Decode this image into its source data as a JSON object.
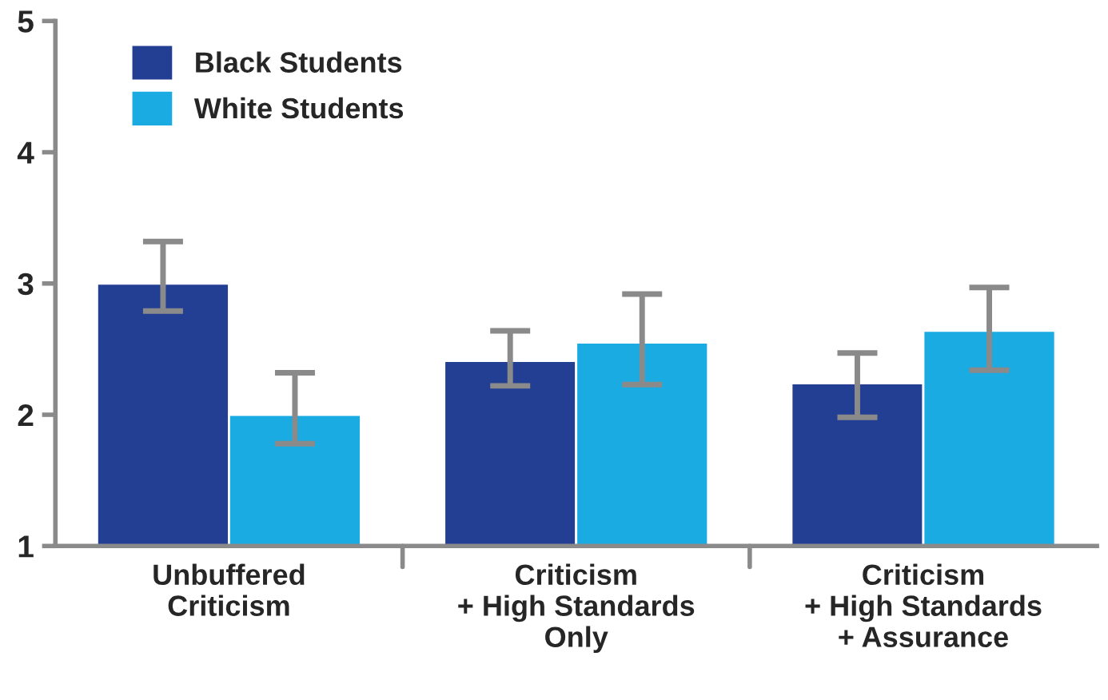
{
  "chart_data": {
    "type": "bar",
    "categories": [
      "Unbuffered\nCriticism",
      "Criticism\n+ High Standards\nOnly",
      "Criticism\n+ High Standards\n+ Assurance"
    ],
    "series": [
      {
        "name": "Black Students",
        "color": "#233f94",
        "values": [
          3.0,
          2.41,
          2.24
        ],
        "errors": [
          [
            2.79,
            3.32
          ],
          [
            2.22,
            2.64
          ],
          [
            1.98,
            2.47
          ]
        ]
      },
      {
        "name": "White Students",
        "color": "#1aabe2",
        "values": [
          2.0,
          2.55,
          2.64
        ],
        "errors": [
          [
            1.78,
            2.32
          ],
          [
            2.23,
            2.92
          ],
          [
            2.34,
            2.97
          ]
        ]
      }
    ],
    "ylim": [
      1,
      5
    ],
    "yticks": [
      1,
      2,
      3,
      4,
      5
    ],
    "grid": false,
    "legend": "top left"
  }
}
